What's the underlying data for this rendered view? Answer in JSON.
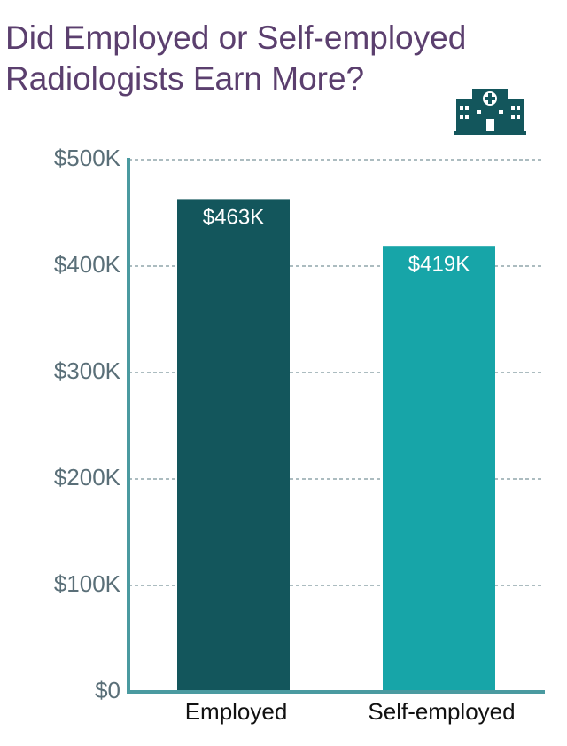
{
  "chart_data": {
    "type": "bar",
    "title": "Did Employed or Self-employed Radiologists Earn More?",
    "categories": [
      "Employed",
      "Self-employed"
    ],
    "values": [
      463000,
      419000
    ],
    "value_labels": [
      "$463K",
      "$419K"
    ],
    "colors": [
      "#13565c",
      "#17a5a8"
    ],
    "ylim": [
      0,
      500000
    ],
    "yticks": [
      {
        "value": 0,
        "label": "$0"
      },
      {
        "value": 100000,
        "label": "$100K"
      },
      {
        "value": 200000,
        "label": "$200K"
      },
      {
        "value": 300000,
        "label": "$300K"
      },
      {
        "value": 400000,
        "label": "$400K"
      },
      {
        "value": 500000,
        "label": "$500K"
      }
    ],
    "grid": true
  }
}
